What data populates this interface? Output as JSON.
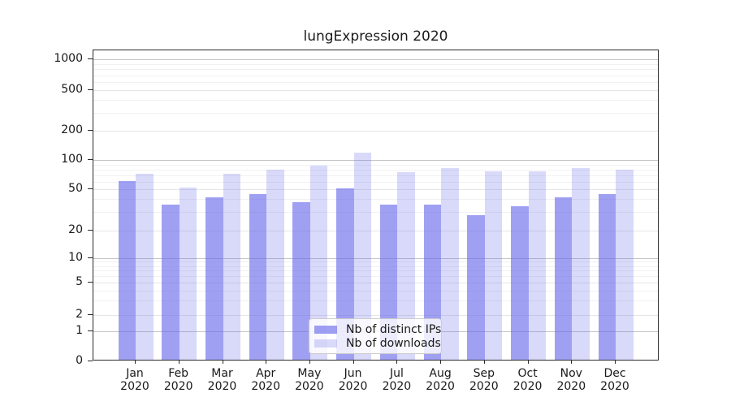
{
  "title": "lungExpression 2020",
  "chart_data": {
    "type": "bar",
    "title": "lungExpression 2020",
    "categories": [
      "Jan 2020",
      "Feb 2020",
      "Mar 2020",
      "Apr 2020",
      "May 2020",
      "Jun 2020",
      "Jul 2020",
      "Aug 2020",
      "Sep 2020",
      "Oct 2020",
      "Nov 2020",
      "Dec 2020"
    ],
    "series": [
      {
        "name": "Nb of distinct IPs",
        "color": "rgba(102,102,235,0.62)",
        "values": [
          58,
          34,
          40,
          43,
          36,
          49,
          34,
          34,
          27,
          33,
          40,
          43
        ]
      },
      {
        "name": "Nb of downloads",
        "color": "rgba(102,102,235,0.25)",
        "values": [
          69,
          50,
          70,
          76,
          84,
          114,
          72,
          80,
          74,
          73,
          80,
          77
        ]
      }
    ],
    "y_axis": {
      "scale": "symlog",
      "ticks": [
        0,
        1,
        2,
        5,
        10,
        20,
        50,
        100,
        200,
        500,
        1000
      ],
      "range": [
        0,
        1150
      ]
    },
    "x_axis": {
      "tick_label_lines": 2,
      "year_line": "2020"
    },
    "grid": true,
    "legend": {
      "position": "lower-center-inside",
      "entries": [
        "Nb of distinct IPs",
        "Nb of downloads"
      ]
    }
  }
}
